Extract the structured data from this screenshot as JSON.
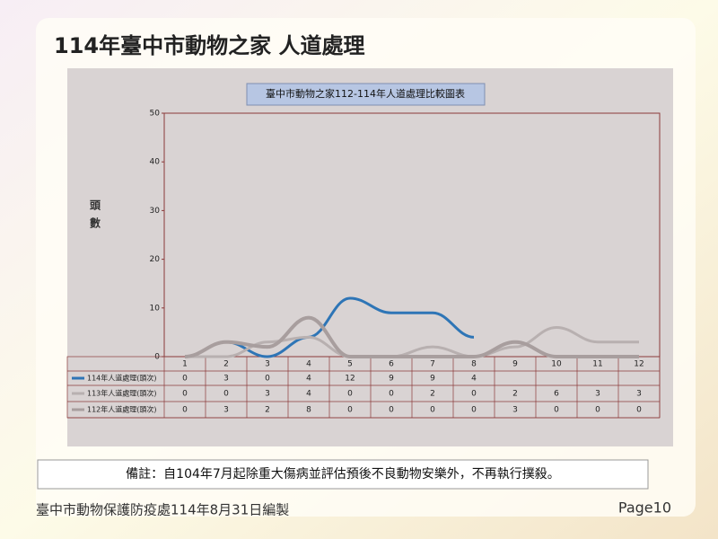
{
  "header": {
    "title": "114年臺中市動物之家 人道處理"
  },
  "chart_data": {
    "type": "line",
    "title": "臺中市動物之家112-114年人道處理比較圖表",
    "y_label": "頭數",
    "categories": [
      "1",
      "2",
      "3",
      "4",
      "5",
      "6",
      "7",
      "8",
      "9",
      "10",
      "11",
      "12"
    ],
    "series": [
      {
        "name": "114年人道處理(頭次)",
        "color": "#2e75b6",
        "values": [
          0,
          3,
          0,
          4,
          12,
          9,
          9,
          4,
          null,
          null,
          null,
          null
        ]
      },
      {
        "name": "113年人道處理(頭次)",
        "color": "#b8b0b0",
        "values": [
          0,
          0,
          3,
          4,
          0,
          0,
          2,
          0,
          2,
          6,
          3,
          3
        ]
      },
      {
        "name": "112年人道處理(頭次)",
        "color": "#a89e9e",
        "values": [
          0,
          3,
          2,
          8,
          0,
          0,
          0,
          0,
          3,
          0,
          0,
          0
        ]
      }
    ],
    "ylim": [
      0,
      50
    ],
    "yticks": [
      0,
      10,
      20,
      30,
      40,
      50
    ],
    "grid": false
  },
  "note": "備註：自104年7月起除重大傷病並評估預後不良動物安樂外，不再執行撲殺。",
  "footer": {
    "source": "臺中市動物保護防疫處114年8月31日編製",
    "page": "Page10"
  }
}
